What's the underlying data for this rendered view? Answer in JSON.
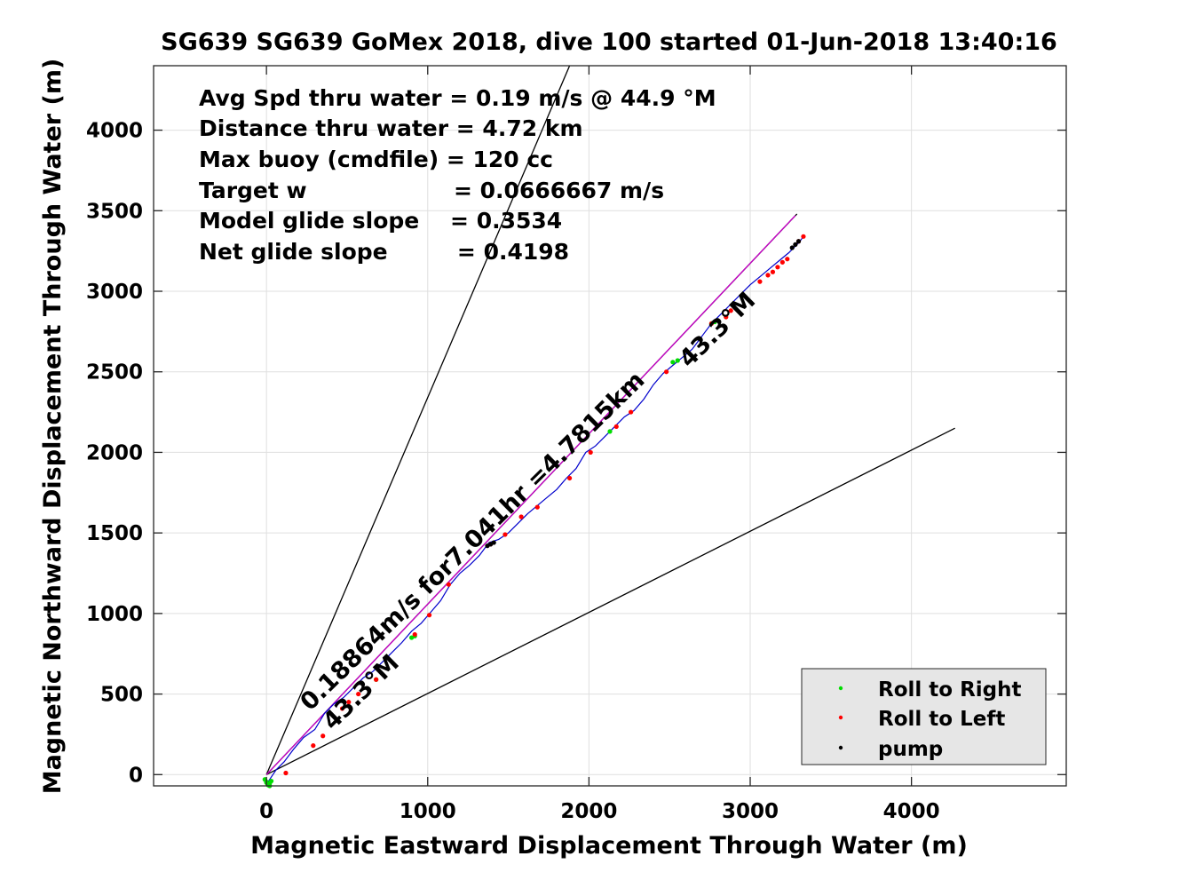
{
  "chart_data": {
    "type": "line",
    "title": "SG639 SG639 GoMex 2018, dive 100 started 01-Jun-2018 13:40:16",
    "xlabel": "Magnetic Eastward Displacement Through Water (m)",
    "ylabel": "Magnetic Northward Displacement Through Water (m)",
    "xlim": [
      -700,
      4960
    ],
    "ylim": [
      -70,
      4400
    ],
    "xticks": [
      0,
      1000,
      2000,
      3000,
      4000
    ],
    "xtick_labels": [
      "0",
      "1000",
      "2000",
      "3000",
      "4000"
    ],
    "yticks": [
      0,
      500,
      1000,
      1500,
      2000,
      2500,
      3000,
      3500,
      4000
    ],
    "ytick_labels": [
      "0",
      "500",
      "1000",
      "1500",
      "2000",
      "2500",
      "3000",
      "3500",
      "4000"
    ],
    "grid": true,
    "legend_position": "bottom-right",
    "stats": [
      "Avg Spd thru water  =  0.19 m/s @  44.9 °M",
      "Distance thru water =  4.72 km",
      "Max buoy (cmdfile)  = 120 cc",
      "Target w                   = 0.0666667 m/s",
      "Model glide slope    = 0.3534",
      "Net glide slope         = 0.4198"
    ],
    "annotations": [
      {
        "text": "0.18864m/s for7.041hr =4.7815km",
        "x": 270,
        "y": 390,
        "angle_deg": 44.5
      },
      {
        "text": "43.3°M",
        "x": 410,
        "y": 270,
        "angle_deg": 44.5
      },
      {
        "text": "43.3°M",
        "x": 2620,
        "y": 2520,
        "angle_deg": 44.5
      }
    ],
    "reference_lines": [
      {
        "name": "",
        "color": "#000000",
        "x": [
          0,
          1880
        ],
        "y": [
          0,
          4400
        ]
      },
      {
        "name": "",
        "color": "#000000",
        "x": [
          0,
          3290
        ],
        "y": [
          0,
          3480
        ]
      },
      {
        "name": "",
        "color": "#000000",
        "x": [
          0,
          4270
        ],
        "y": [
          0,
          2150
        ]
      },
      {
        "name": "",
        "color": "#cc00cc",
        "x": [
          0,
          3280
        ],
        "y": [
          0,
          3470
        ]
      }
    ],
    "track": {
      "name": "",
      "color": "#0000cc",
      "x": [
        0,
        20,
        60,
        110,
        170,
        230,
        300,
        360,
        420,
        480,
        540,
        600,
        660,
        720,
        780,
        840,
        900,
        960,
        1020,
        1080,
        1140,
        1200,
        1260,
        1320,
        1380,
        1440,
        1500,
        1560,
        1620,
        1680,
        1740,
        1800,
        1860,
        1920,
        1980,
        2040,
        2100,
        2160,
        2220,
        2280,
        2340,
        2400,
        2460,
        2520,
        2580,
        2640,
        2700,
        2760,
        2820,
        2880,
        2940,
        3000,
        3060,
        3120,
        3180,
        3240,
        3300,
        3330
      ],
      "y": [
        -60,
        -30,
        30,
        80,
        160,
        230,
        280,
        380,
        440,
        480,
        540,
        600,
        640,
        700,
        760,
        820,
        890,
        940,
        1010,
        1080,
        1180,
        1250,
        1300,
        1360,
        1440,
        1460,
        1500,
        1560,
        1620,
        1670,
        1720,
        1770,
        1840,
        1900,
        2000,
        2040,
        2100,
        2160,
        2220,
        2260,
        2330,
        2420,
        2490,
        2540,
        2590,
        2640,
        2720,
        2800,
        2860,
        2920,
        2980,
        3040,
        3090,
        3140,
        3190,
        3240,
        3300,
        3340
      ]
    },
    "series": [
      {
        "name": "Roll to Right",
        "color": "#00dd00",
        "x": [
          -10,
          0,
          10,
          20,
          30,
          20,
          10,
          0,
          680,
          900,
          920,
          2130,
          2520,
          2550,
          2760,
          2780
        ],
        "y": [
          -30,
          -50,
          -60,
          -55,
          -40,
          -70,
          -65,
          -45,
          590,
          850,
          860,
          2130,
          2560,
          2570,
          2800,
          2810
        ]
      },
      {
        "name": "Roll to Left",
        "color": "#ff0000",
        "x": [
          120,
          290,
          350,
          470,
          510,
          570,
          680,
          920,
          1010,
          1130,
          1390,
          1480,
          1580,
          1680,
          1880,
          2010,
          2170,
          2260,
          2480,
          2760,
          2850,
          2880,
          3060,
          3110,
          3140,
          3170,
          3200,
          3230,
          3300,
          3330
        ],
        "y": [
          10,
          180,
          240,
          410,
          450,
          500,
          590,
          870,
          990,
          1180,
          1430,
          1490,
          1600,
          1660,
          1840,
          2000,
          2160,
          2250,
          2500,
          2800,
          2840,
          2880,
          3060,
          3100,
          3120,
          3150,
          3180,
          3200,
          3310,
          3340
        ]
      },
      {
        "name": "pump",
        "color": "#000000",
        "x": [
          1370,
          1390,
          1410,
          3260,
          3280,
          3300
        ],
        "y": [
          1420,
          1430,
          1440,
          3270,
          3290,
          3310
        ]
      }
    ]
  }
}
